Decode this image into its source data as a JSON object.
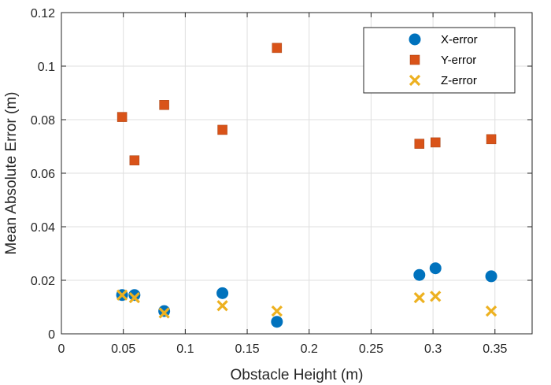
{
  "chart_data": {
    "type": "scatter",
    "xlabel": "Obstacle Height (m)",
    "ylabel": "Mean Absolute Error (m)",
    "xlim": [
      0,
      0.38
    ],
    "ylim": [
      0,
      0.12
    ],
    "grid": true,
    "legend_position": "top-right",
    "x_ticks": [
      0,
      0.05,
      0.1,
      0.15,
      0.2,
      0.25,
      0.3,
      0.35
    ],
    "x_tick_labels": [
      "0",
      "0.05",
      "0.1",
      "0.15",
      "0.2",
      "0.25",
      "0.3",
      "0.35"
    ],
    "y_ticks": [
      0,
      0.02,
      0.04,
      0.06,
      0.08,
      0.1,
      0.12
    ],
    "y_tick_labels": [
      "0",
      "0.02",
      "0.04",
      "0.06",
      "0.08",
      "0.1",
      "0.12"
    ],
    "series": [
      {
        "name": "X-error",
        "marker": "circle",
        "color": "#0072BD",
        "x": [
          0.049,
          0.059,
          0.083,
          0.13,
          0.174,
          0.289,
          0.302,
          0.347
        ],
        "y": [
          0.0145,
          0.0145,
          0.0085,
          0.0152,
          0.0045,
          0.022,
          0.0245,
          0.0215
        ]
      },
      {
        "name": "Y-error",
        "marker": "square",
        "color": "#D95319",
        "x": [
          0.049,
          0.059,
          0.083,
          0.13,
          0.174,
          0.289,
          0.302,
          0.347
        ],
        "y": [
          0.081,
          0.0648,
          0.0855,
          0.0762,
          0.1068,
          0.071,
          0.0715,
          0.0727
        ]
      },
      {
        "name": "Z-error",
        "marker": "x",
        "color": "#EDB120",
        "x": [
          0.049,
          0.059,
          0.083,
          0.13,
          0.174,
          0.289,
          0.302,
          0.347
        ],
        "y": [
          0.0145,
          0.0135,
          0.0078,
          0.0105,
          0.0085,
          0.0135,
          0.014,
          0.0085
        ]
      }
    ]
  }
}
